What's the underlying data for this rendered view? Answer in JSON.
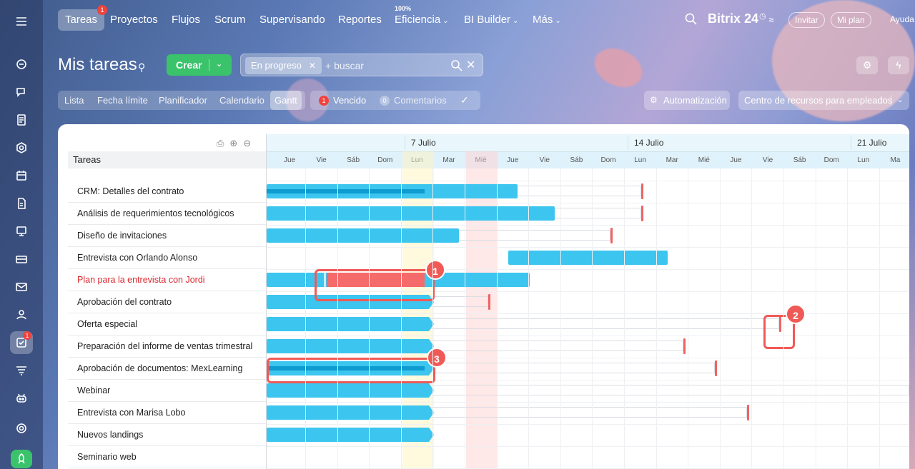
{
  "nav": {
    "items": [
      {
        "label": "Tareas",
        "badge": "1"
      },
      {
        "label": "Proyectos"
      },
      {
        "label": "Flujos"
      },
      {
        "label": "Scrum"
      },
      {
        "label": "Supervisando"
      },
      {
        "label": "Reportes"
      },
      {
        "label": "Eficiencia",
        "super": "100%"
      },
      {
        "label": "BI Builder"
      },
      {
        "label": "Más"
      }
    ],
    "brand": "Bitrix 24",
    "invite": "Invitar",
    "my_plan": "Mi plan",
    "help": "Ayuda"
  },
  "sidebar": {
    "icons": [
      "feed-icon",
      "chat-icon",
      "documents-icon",
      "collab-icon",
      "calendar-icon",
      "disk-icon",
      "video-icon",
      "crm-icon",
      "mail-icon",
      "contacts-icon",
      "tasks-icon",
      "filter-icon",
      "robot-icon",
      "settings-icon",
      "rocket-icon"
    ],
    "tasks_badge": "1"
  },
  "page": {
    "title": "Mis tareas",
    "create_label": "Crear",
    "filter_chip": "En progreso",
    "search_placeholder": "+ buscar"
  },
  "views": {
    "tabs": [
      "Lista",
      "Fecha límite",
      "Planificador",
      "Calendario",
      "Gantt"
    ],
    "active": "Gantt"
  },
  "counters": {
    "overdue_count": "1",
    "overdue_label": "Vencido",
    "comments_count": "0",
    "comments_label": "Comentarios"
  },
  "buttons": {
    "automation": "Automatización",
    "resources": "Centro de recursos para empleados"
  },
  "gantt": {
    "column_header": "Tareas",
    "weeks": [
      "7 Julio",
      "14 Julio",
      "21 Julio"
    ],
    "days": [
      "Jue",
      "Vie",
      "Sáb",
      "Dom",
      "Lun",
      "Mar",
      "Mié",
      "Jue",
      "Vie",
      "Sáb",
      "Dom",
      "Lun",
      "Mar",
      "Mié",
      "Jue",
      "Vie",
      "Sáb",
      "Dom",
      "Lun",
      "Ma"
    ],
    "tasks": [
      {
        "name": "CRM: Detalles del contrato"
      },
      {
        "name": "Análisis de requerimientos tecnológicos"
      },
      {
        "name": "Diseño de invitaciones"
      },
      {
        "name": "Entrevista con Orlando Alonso"
      },
      {
        "name": "Plan para la entrevista con Jordi",
        "overdue": true
      },
      {
        "name": "Aprobación del contrato"
      },
      {
        "name": "Oferta especial"
      },
      {
        "name": "Preparación del informe de ventas trimestral"
      },
      {
        "name": "Aprobación de documentos: MexLearning"
      },
      {
        "name": "Webinar"
      },
      {
        "name": "Entrevista con Marisa Lobo"
      },
      {
        "name": "Nuevos landings"
      },
      {
        "name": "Seminario web"
      }
    ],
    "callouts": [
      "1",
      "2",
      "3"
    ]
  },
  "colors": {
    "bar": "#3cc5ee",
    "progress": "#0d9bd0",
    "overdue": "#f56a6a",
    "deadline": "#f26262",
    "create": "#3bc36b",
    "callout": "#f05a56"
  }
}
